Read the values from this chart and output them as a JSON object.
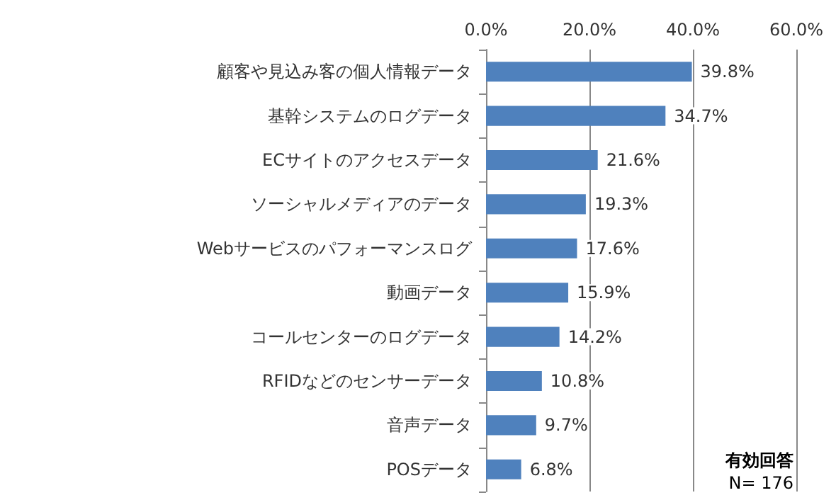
{
  "chart_data": {
    "type": "bar",
    "orientation": "horizontal",
    "categories": [
      "顧客や見込み客の個人情報データ",
      "基幹システムのログデータ",
      "ECサイトのアクセスデータ",
      "ソーシャルメディアのデータ",
      "Webサービスのパフォーマンスログ",
      "動画データ",
      "コールセンターのログデータ",
      "RFIDなどのセンサーデータ",
      "音声データ",
      "POSデータ"
    ],
    "values": [
      39.8,
      34.7,
      21.6,
      19.3,
      17.6,
      15.9,
      14.2,
      10.8,
      9.7,
      6.8
    ],
    "value_labels": [
      "39.8%",
      "34.7%",
      "21.6%",
      "19.3%",
      "17.6%",
      "15.9%",
      "14.2%",
      "10.8%",
      "9.7%",
      "6.8%"
    ],
    "color": "#4f81bd",
    "xlim": [
      0,
      60
    ],
    "xticks": [
      {
        "value": 0,
        "label": "0.0%"
      },
      {
        "value": 20,
        "label": "20.0%"
      },
      {
        "value": 40,
        "label": "40.0%"
      },
      {
        "value": 60,
        "label": "60.0%"
      }
    ],
    "grid": "x",
    "annotations": [
      "有効回答",
      "N= 176"
    ]
  }
}
